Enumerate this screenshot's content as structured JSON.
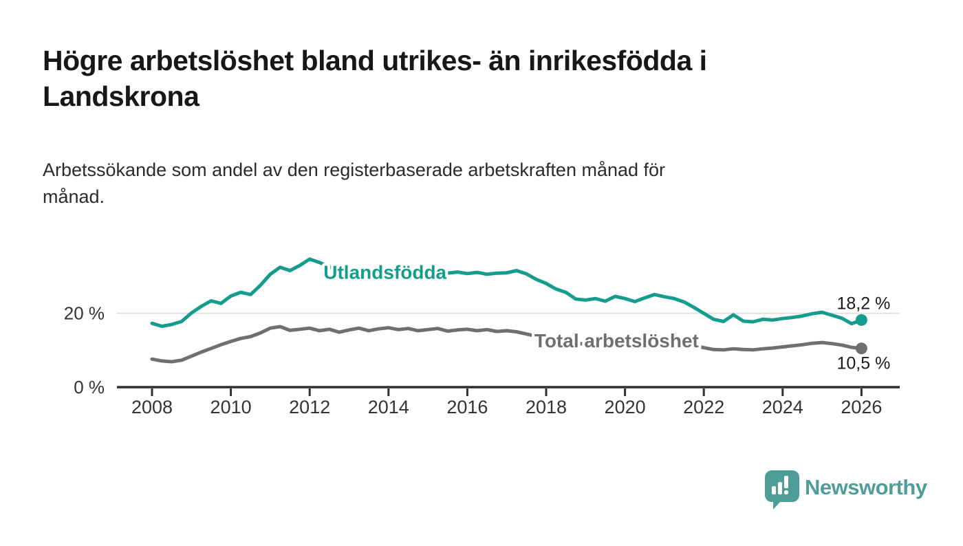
{
  "header": {
    "title_lines": [
      "Högre arbetslöshet bland utrikes- än inrikesfödda i",
      "Landskrona"
    ],
    "subtitle_lines": [
      "Arbetssökande som andel av den registerbaserade arbetskraften månad för",
      "månad."
    ]
  },
  "footer": {
    "brand": "Newsworthy",
    "logo_icon": "newsworthy-speech-bubble-bar-chart-icon"
  },
  "colors": {
    "series_utlandsfodda": "#149C8C",
    "series_total": "#6F6F6F",
    "axis": "#2F2F2F",
    "grid": "#DCDCDC",
    "tick_text": "#333333",
    "value_text": "#1A1A1A",
    "brand_teal": "#4F9D98"
  },
  "chart_data": {
    "type": "line",
    "title": "Högre arbetslöshet bland utrikes- än inrikesfödda i Landskrona",
    "subtitle": "Arbetssökande som andel av den registerbaserade arbetskraften månad för månad.",
    "xlabel": "",
    "ylabel": "",
    "xlim": [
      2008,
      2027
    ],
    "ylim": [
      0,
      37
    ],
    "grid": "horizontal-20-only",
    "legend_position": "inline-on-lines",
    "x_ticks": [
      2008,
      2010,
      2012,
      2014,
      2016,
      2018,
      2020,
      2022,
      2024,
      2026
    ],
    "y_ticks": [
      {
        "value": 0,
        "label": "0 %"
      },
      {
        "value": 20,
        "label": "20 %"
      }
    ],
    "series": [
      {
        "name": "Utlandsfödda",
        "color": "#149C8C",
        "end_label": "18,2 %",
        "end_value": 18.2,
        "label_anchor": {
          "x": 2012.35,
          "y": 29.4
        },
        "points": [
          [
            2008.0,
            17.3
          ],
          [
            2008.25,
            16.5
          ],
          [
            2008.5,
            17.0
          ],
          [
            2008.75,
            17.8
          ],
          [
            2009.0,
            20.1
          ],
          [
            2009.25,
            21.9
          ],
          [
            2009.5,
            23.4
          ],
          [
            2009.75,
            22.7
          ],
          [
            2010.0,
            24.7
          ],
          [
            2010.25,
            25.7
          ],
          [
            2010.5,
            25.1
          ],
          [
            2010.75,
            27.6
          ],
          [
            2011.0,
            30.6
          ],
          [
            2011.25,
            32.5
          ],
          [
            2011.5,
            31.6
          ],
          [
            2011.75,
            33.0
          ],
          [
            2012.0,
            34.7
          ],
          [
            2012.25,
            33.8
          ],
          [
            2012.5,
            32.6
          ],
          [
            2012.75,
            31.6
          ],
          [
            2013.0,
            30.7
          ],
          [
            2013.25,
            29.5
          ],
          [
            2013.5,
            30.4
          ],
          [
            2013.75,
            31.6
          ],
          [
            2014.0,
            32.2
          ],
          [
            2014.25,
            31.8
          ],
          [
            2014.5,
            31.3
          ],
          [
            2014.75,
            31.8
          ],
          [
            2015.0,
            31.6
          ],
          [
            2015.25,
            31.1
          ],
          [
            2015.5,
            30.9
          ],
          [
            2015.75,
            31.2
          ],
          [
            2016.0,
            30.8
          ],
          [
            2016.25,
            31.1
          ],
          [
            2016.5,
            30.6
          ],
          [
            2016.75,
            30.9
          ],
          [
            2017.0,
            31.0
          ],
          [
            2017.25,
            31.6
          ],
          [
            2017.5,
            30.7
          ],
          [
            2017.75,
            29.2
          ],
          [
            2018.0,
            28.1
          ],
          [
            2018.25,
            26.6
          ],
          [
            2018.5,
            25.7
          ],
          [
            2018.75,
            23.9
          ],
          [
            2019.0,
            23.6
          ],
          [
            2019.25,
            24.0
          ],
          [
            2019.5,
            23.3
          ],
          [
            2019.75,
            24.6
          ],
          [
            2020.0,
            24.0
          ],
          [
            2020.25,
            23.2
          ],
          [
            2020.5,
            24.2
          ],
          [
            2020.75,
            25.1
          ],
          [
            2021.0,
            24.5
          ],
          [
            2021.25,
            24.0
          ],
          [
            2021.5,
            23.1
          ],
          [
            2021.75,
            21.6
          ],
          [
            2022.0,
            20.0
          ],
          [
            2022.25,
            18.4
          ],
          [
            2022.5,
            17.8
          ],
          [
            2022.75,
            19.6
          ],
          [
            2023.0,
            17.9
          ],
          [
            2023.25,
            17.7
          ],
          [
            2023.5,
            18.4
          ],
          [
            2023.75,
            18.2
          ],
          [
            2024.0,
            18.6
          ],
          [
            2024.25,
            18.9
          ],
          [
            2024.5,
            19.3
          ],
          [
            2024.75,
            19.9
          ],
          [
            2025.0,
            20.3
          ],
          [
            2025.25,
            19.5
          ],
          [
            2025.5,
            18.7
          ],
          [
            2025.75,
            17.2
          ],
          [
            2026.0,
            18.2
          ]
        ]
      },
      {
        "name": "Total arbetslöshet",
        "color": "#6F6F6F",
        "end_label": "10,5 %",
        "end_value": 10.5,
        "label_anchor": {
          "x": 2017.7,
          "y": 10.8
        },
        "points": [
          [
            2008.0,
            7.6
          ],
          [
            2008.25,
            7.1
          ],
          [
            2008.5,
            6.9
          ],
          [
            2008.75,
            7.3
          ],
          [
            2009.0,
            8.4
          ],
          [
            2009.25,
            9.5
          ],
          [
            2009.5,
            10.5
          ],
          [
            2009.75,
            11.5
          ],
          [
            2010.0,
            12.4
          ],
          [
            2010.25,
            13.2
          ],
          [
            2010.5,
            13.7
          ],
          [
            2010.75,
            14.7
          ],
          [
            2011.0,
            16.0
          ],
          [
            2011.25,
            16.4
          ],
          [
            2011.5,
            15.4
          ],
          [
            2011.75,
            15.7
          ],
          [
            2012.0,
            16.0
          ],
          [
            2012.25,
            15.3
          ],
          [
            2012.5,
            15.7
          ],
          [
            2012.75,
            14.9
          ],
          [
            2013.0,
            15.5
          ],
          [
            2013.25,
            16.0
          ],
          [
            2013.5,
            15.3
          ],
          [
            2013.75,
            15.8
          ],
          [
            2014.0,
            16.1
          ],
          [
            2014.25,
            15.6
          ],
          [
            2014.5,
            15.9
          ],
          [
            2014.75,
            15.3
          ],
          [
            2015.0,
            15.6
          ],
          [
            2015.25,
            15.9
          ],
          [
            2015.5,
            15.2
          ],
          [
            2015.75,
            15.5
          ],
          [
            2016.0,
            15.7
          ],
          [
            2016.25,
            15.3
          ],
          [
            2016.5,
            15.6
          ],
          [
            2016.75,
            15.1
          ],
          [
            2017.0,
            15.3
          ],
          [
            2017.25,
            15.0
          ],
          [
            2017.5,
            14.4
          ],
          [
            2017.75,
            13.8
          ],
          [
            2018.0,
            13.2
          ],
          [
            2018.25,
            12.7
          ],
          [
            2018.5,
            12.3
          ],
          [
            2018.75,
            11.9
          ],
          [
            2019.0,
            11.7
          ],
          [
            2019.25,
            11.9
          ],
          [
            2019.5,
            11.6
          ],
          [
            2019.75,
            12.0
          ],
          [
            2020.0,
            12.3
          ],
          [
            2020.25,
            13.2
          ],
          [
            2020.5,
            13.8
          ],
          [
            2020.75,
            13.5
          ],
          [
            2021.0,
            13.1
          ],
          [
            2021.25,
            12.6
          ],
          [
            2021.5,
            12.0
          ],
          [
            2021.75,
            11.3
          ],
          [
            2022.0,
            10.7
          ],
          [
            2022.25,
            10.2
          ],
          [
            2022.5,
            10.1
          ],
          [
            2022.75,
            10.4
          ],
          [
            2023.0,
            10.2
          ],
          [
            2023.25,
            10.1
          ],
          [
            2023.5,
            10.4
          ],
          [
            2023.75,
            10.6
          ],
          [
            2024.0,
            10.9
          ],
          [
            2024.25,
            11.2
          ],
          [
            2024.5,
            11.5
          ],
          [
            2024.75,
            11.9
          ],
          [
            2025.0,
            12.1
          ],
          [
            2025.25,
            11.8
          ],
          [
            2025.5,
            11.4
          ],
          [
            2025.75,
            10.8
          ],
          [
            2026.0,
            10.5
          ]
        ]
      }
    ]
  }
}
